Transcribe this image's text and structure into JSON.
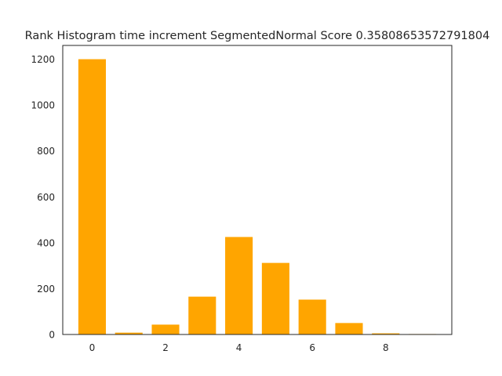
{
  "chart_data": {
    "type": "bar",
    "title": "Rank Histogram time increment SegmentedNormal Score 0.35808653572791804",
    "xlabel": "",
    "ylabel": "",
    "x": [
      0,
      1,
      2,
      3,
      4,
      5,
      6,
      7,
      8,
      9
    ],
    "values": [
      1200,
      8,
      43,
      165,
      425,
      312,
      152,
      50,
      5,
      2
    ],
    "xlim": [
      -0.8,
      9.8
    ],
    "ylim": [
      0,
      1260
    ],
    "xticks": [
      0,
      2,
      4,
      6,
      8
    ],
    "yticks": [
      0,
      200,
      400,
      600,
      800,
      1000,
      1200
    ],
    "bar_color": "#ffa500",
    "grid": false,
    "legend": "none"
  }
}
